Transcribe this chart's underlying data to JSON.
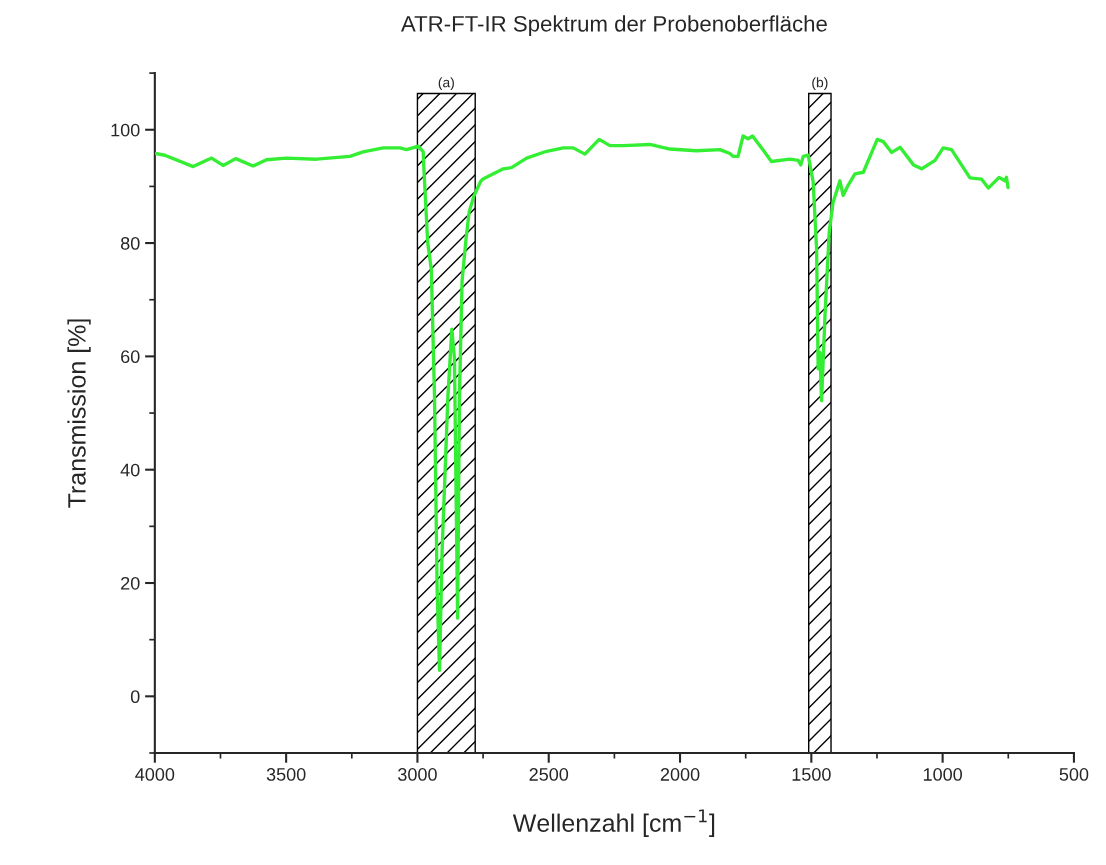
{
  "chart_data": {
    "type": "line",
    "title": "ATR-FT-IR Spektrum der Probenoberfläche",
    "xlabel": "Wellenzahl [cm$^{−1}$]",
    "ylabel": "Transmission [%]",
    "series": [
      {
        "color": "#33ee33",
        "x": [
          3994,
          3962,
          3854,
          3784,
          3740,
          3692,
          3626,
          3575,
          3499,
          3384,
          3257,
          3207,
          3130,
          3067,
          3041,
          2997,
          2978,
          2976,
          2961,
          2947,
          2935,
          2925,
          2916,
          2906,
          2884,
          2869,
          2859,
          2847,
          2840,
          2830,
          2815,
          2803,
          2786,
          2759,
          2750,
          2673,
          2642,
          2584,
          2508,
          2444,
          2407,
          2362,
          2308,
          2267,
          2216,
          2115,
          2039,
          1937,
          1848,
          1810,
          1798,
          1779,
          1760,
          1741,
          1724,
          1683,
          1652,
          1582,
          1550,
          1540,
          1531,
          1512,
          1493,
          1480,
          1474,
          1467,
          1461,
          1448,
          1432,
          1417,
          1391,
          1379,
          1360,
          1334,
          1302,
          1249,
          1226,
          1194,
          1162,
          1111,
          1080,
          1029,
          998,
          966,
          896,
          852,
          826,
          785,
          763,
          757,
          751
        ],
        "values": [
          95.8,
          95.5,
          93.5,
          95.0,
          93.7,
          94.9,
          93.6,
          94.7,
          95.0,
          94.8,
          95.3,
          96.1,
          96.8,
          96.8,
          96.5,
          97.1,
          96.1,
          93.7,
          80.1,
          75.3,
          52.9,
          18.9,
          4.6,
          25.7,
          52.9,
          64.8,
          59.7,
          13.8,
          52.9,
          73.3,
          80.7,
          85.5,
          88.2,
          90.9,
          91.3,
          93.1,
          93.3,
          95.0,
          96.2,
          96.8,
          96.8,
          95.7,
          98.3,
          97.2,
          97.2,
          97.4,
          96.6,
          96.3,
          96.5,
          95.8,
          95.3,
          95.3,
          98.9,
          98.4,
          98.9,
          96.4,
          94.4,
          94.8,
          94.6,
          93.8,
          95.3,
          95.5,
          90.8,
          79.0,
          57.8,
          60.7,
          52.2,
          67.2,
          81.9,
          87.2,
          91.0,
          88.4,
          90.2,
          92.2,
          92.5,
          98.3,
          97.9,
          96.0,
          96.9,
          93.8,
          93.1,
          94.6,
          96.8,
          96.5,
          91.5,
          91.3,
          89.7,
          91.6,
          91.0,
          91.6,
          89.8
        ]
      }
    ],
    "bands": [
      {
        "axis": "x",
        "from": 3000,
        "to": 2780,
        "label": "(a)"
      },
      {
        "axis": "x",
        "from": 1510,
        "to": 1425,
        "label": "(b)"
      }
    ],
    "xlim": [
      4000,
      500
    ],
    "xticks": [
      4000,
      3500,
      3000,
      2500,
      2000,
      1500,
      1000,
      500
    ],
    "ylim": [
      -10,
      110
    ],
    "yticks": [
      0,
      20,
      40,
      60,
      80,
      100
    ],
    "grid": false,
    "legend": false,
    "marker": "none",
    "line_style": "solid"
  }
}
